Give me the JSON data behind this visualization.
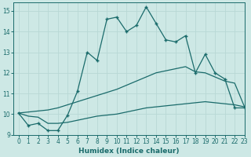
{
  "xlabel": "Humidex (Indice chaleur)",
  "xlim": [
    -0.5,
    23
  ],
  "ylim": [
    9,
    15.4
  ],
  "yticks": [
    9,
    10,
    11,
    12,
    13,
    14,
    15
  ],
  "xticks": [
    0,
    1,
    2,
    3,
    4,
    5,
    6,
    7,
    8,
    9,
    10,
    11,
    12,
    13,
    14,
    15,
    16,
    17,
    18,
    19,
    20,
    21,
    22,
    23
  ],
  "bg_color": "#cde8e5",
  "grid_color": "#b8d8d5",
  "line_color": "#1a6b6b",
  "line1_x": [
    0,
    1,
    2,
    3,
    4,
    5,
    6,
    7,
    8,
    9,
    10,
    11,
    12,
    13,
    14,
    15,
    16,
    17,
    18,
    19,
    20,
    21,
    22,
    23
  ],
  "line1_y": [
    10.05,
    9.45,
    9.55,
    9.2,
    9.2,
    9.95,
    11.1,
    13.0,
    12.6,
    14.6,
    14.7,
    14.0,
    14.3,
    15.2,
    14.4,
    13.6,
    13.5,
    13.8,
    12.0,
    12.9,
    12.0,
    11.7,
    10.3,
    10.3
  ],
  "line2_x": [
    0,
    1,
    2,
    3,
    4,
    5,
    6,
    7,
    8,
    9,
    10,
    11,
    12,
    13,
    14,
    15,
    16,
    17,
    18,
    19,
    20,
    21,
    22,
    23
  ],
  "line2_y": [
    10.05,
    10.1,
    10.15,
    10.2,
    10.3,
    10.45,
    10.6,
    10.75,
    10.9,
    11.05,
    11.2,
    11.4,
    11.6,
    11.8,
    12.0,
    12.1,
    12.2,
    12.3,
    12.05,
    12.0,
    11.8,
    11.6,
    11.5,
    10.35
  ],
  "line3_x": [
    0,
    1,
    2,
    3,
    4,
    5,
    6,
    7,
    8,
    9,
    10,
    11,
    12,
    13,
    14,
    15,
    16,
    17,
    18,
    19,
    20,
    21,
    22,
    23
  ],
  "line3_y": [
    10.05,
    9.9,
    9.85,
    9.55,
    9.55,
    9.6,
    9.7,
    9.8,
    9.9,
    9.95,
    10.0,
    10.1,
    10.2,
    10.3,
    10.35,
    10.4,
    10.45,
    10.5,
    10.55,
    10.6,
    10.55,
    10.5,
    10.45,
    10.35
  ],
  "markersize": 2.5,
  "linewidth": 0.9
}
